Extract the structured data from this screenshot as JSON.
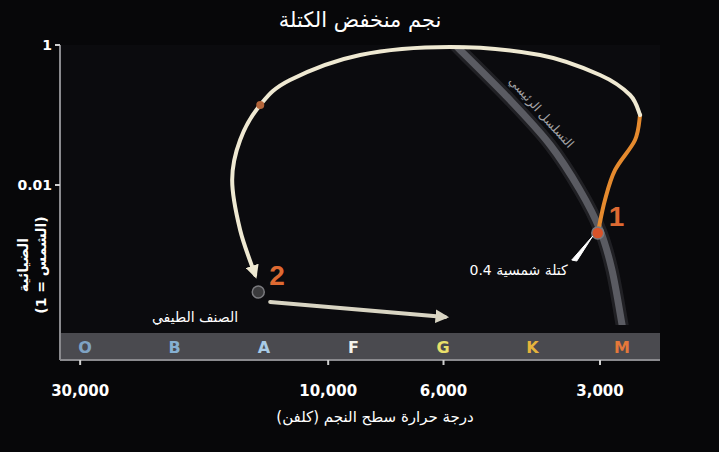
{
  "chart_data": {
    "type": "line",
    "title": "نجم منخفض الكتلة",
    "xlabel": "درجة حرارة سطح النجم (كلفن)",
    "ylabel": [
      "الضيائية",
      "(الشمس = 1)"
    ],
    "log": true,
    "grid": false,
    "xlim": [
      32800,
      2300
    ],
    "ylim": [
      0.0001,
      1
    ],
    "xticks": [
      {
        "value": 30000,
        "label": "30,000"
      },
      {
        "value": 10000,
        "label": "10,000"
      },
      {
        "value": 6000,
        "label": "6,000"
      },
      {
        "value": 3000,
        "label": "3,000"
      }
    ],
    "yticks": [
      1,
      0.01
    ],
    "spectral_classes": {
      "label": "الصنف الطيفي",
      "classes": [
        "O",
        "B",
        "A",
        "F",
        "G",
        "K",
        "M"
      ],
      "colors": [
        "#7fa3c4",
        "#86b0d2",
        "#a8cbe6",
        "#f2f2ec",
        "#e9e06a",
        "#e5b43c",
        "#e4783a"
      ]
    },
    "series": [
      {
        "name": "التسلسل الرئيسي",
        "color": "#5a5b62",
        "x": [
          5700,
          4470,
          3740,
          3280,
          3000,
          2845,
          2720
        ],
        "values": [
          1,
          0.164,
          0.0373,
          0.0085,
          0.00228,
          0.00061,
          0.0001
        ]
      },
      {
        "color": "#e58a2e",
        "x": [
          3030,
          2935,
          2806,
          2569,
          2512
        ],
        "values": [
          0.00206,
          0.0061,
          0.0164,
          0.044,
          0.1
        ]
      },
      {
        "color": "#efe9d2",
        "marker": "arrow",
        "x": [
          2512,
          2626,
          3000,
          3912,
          5830,
          8680,
          11840,
          13510,
          14770,
          15300,
          14770,
          13820
        ],
        "values": [
          0.1,
          0.193,
          0.373,
          0.72,
          0.936,
          0.72,
          0.316,
          0.139,
          0.044,
          0.0118,
          0.00228,
          0.00052
        ]
      },
      {
        "color": "#d9d5c3",
        "marker": "arrow",
        "x": [
          12930,
          5960
        ],
        "values": [
          0.000213,
          0.00013
        ]
      },
      {
        "type": "scatter",
        "colors": [
          "#d9532a",
          "#b3653a",
          "#3a3a3c"
        ],
        "x": [
          3030,
          13510,
          13630
        ],
        "values": [
          0.00206,
          0.139,
          0.000296
        ],
        "point_labels": [
          "1",
          null,
          "2"
        ]
      }
    ],
    "annotations": [
      {
        "text": "0.4 كتلة شمسية",
        "x": 3030,
        "y": 0.00206
      }
    ]
  }
}
